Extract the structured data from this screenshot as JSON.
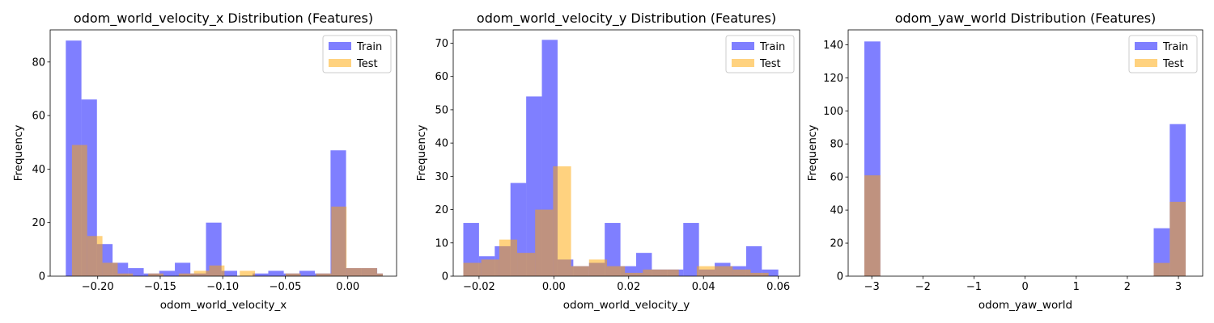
{
  "chart_data": [
    {
      "type": "bar",
      "title": "odom_world_velocity_x Distribution (Features)",
      "xlabel": "odom_world_velocity_x",
      "ylabel": "Frequency",
      "xlim": [
        -0.238,
        0.039
      ],
      "ylim": [
        0,
        92
      ],
      "xticks": [
        -0.2,
        -0.15,
        -0.1,
        -0.05,
        0.0
      ],
      "xtick_labels": [
        "−0.20",
        "−0.15",
        "−0.10",
        "−0.05",
        "0.00"
      ],
      "yticks": [
        0,
        20,
        40,
        60,
        80
      ],
      "ytick_labels": [
        "0",
        "20",
        "40",
        "60",
        "80"
      ],
      "legend_position": "top-right",
      "series": [
        {
          "name": "Train",
          "color": "#0000ff",
          "opacity": 0.5,
          "bins": [
            {
              "x0": -0.2255,
              "x1": -0.213,
              "count": 88
            },
            {
              "x0": -0.213,
              "x1": -0.2006,
              "count": 66
            },
            {
              "x0": -0.2006,
              "x1": -0.1881,
              "count": 12
            },
            {
              "x0": -0.1881,
              "x1": -0.1757,
              "count": 5
            },
            {
              "x0": -0.1757,
              "x1": -0.1632,
              "count": 3
            },
            {
              "x0": -0.1632,
              "x1": -0.1508,
              "count": 1
            },
            {
              "x0": -0.1508,
              "x1": -0.1383,
              "count": 2
            },
            {
              "x0": -0.1383,
              "x1": -0.1259,
              "count": 5
            },
            {
              "x0": -0.1259,
              "x1": -0.1134,
              "count": 1
            },
            {
              "x0": -0.1134,
              "x1": -0.101,
              "count": 20
            },
            {
              "x0": -0.101,
              "x1": -0.0885,
              "count": 2
            },
            {
              "x0": -0.0885,
              "x1": -0.0761,
              "count": 0
            },
            {
              "x0": -0.0761,
              "x1": -0.0636,
              "count": 1
            },
            {
              "x0": -0.0636,
              "x1": -0.0512,
              "count": 2
            },
            {
              "x0": -0.0512,
              "x1": -0.0387,
              "count": 1
            },
            {
              "x0": -0.0387,
              "x1": -0.0263,
              "count": 2
            },
            {
              "x0": -0.0263,
              "x1": -0.0138,
              "count": 1
            },
            {
              "x0": -0.0138,
              "x1": -0.0014,
              "count": 47
            },
            {
              "x0": -0.0014,
              "x1": 0.0111,
              "count": 3
            },
            {
              "x0": 0.0111,
              "x1": 0.0235,
              "count": 3
            },
            {
              "x0": 0.0235,
              "x1": 0.028,
              "count": 1
            }
          ]
        },
        {
          "name": "Test",
          "color": "#ffa500",
          "opacity": 0.5,
          "bins": [
            {
              "x0": -0.2206,
              "x1": -0.2084,
              "count": 49
            },
            {
              "x0": -0.2084,
              "x1": -0.1962,
              "count": 15
            },
            {
              "x0": -0.1962,
              "x1": -0.184,
              "count": 5
            },
            {
              "x0": -0.184,
              "x1": -0.1718,
              "count": 1
            },
            {
              "x0": -0.1718,
              "x1": -0.1596,
              "count": 0
            },
            {
              "x0": -0.1596,
              "x1": -0.1474,
              "count": 1
            },
            {
              "x0": -0.1474,
              "x1": -0.1352,
              "count": 0
            },
            {
              "x0": -0.1352,
              "x1": -0.123,
              "count": 1
            },
            {
              "x0": -0.123,
              "x1": -0.1108,
              "count": 2
            },
            {
              "x0": -0.1108,
              "x1": -0.0986,
              "count": 4
            },
            {
              "x0": -0.0986,
              "x1": -0.0864,
              "count": 0
            },
            {
              "x0": -0.0864,
              "x1": -0.0742,
              "count": 2
            },
            {
              "x0": -0.0742,
              "x1": -0.062,
              "count": 0
            },
            {
              "x0": -0.062,
              "x1": -0.0498,
              "count": 0
            },
            {
              "x0": -0.0498,
              "x1": -0.0376,
              "count": 1
            },
            {
              "x0": -0.0376,
              "x1": -0.0254,
              "count": 0
            },
            {
              "x0": -0.0254,
              "x1": -0.0132,
              "count": 1
            },
            {
              "x0": -0.0132,
              "x1": -0.001,
              "count": 26
            },
            {
              "x0": -0.001,
              "x1": 0.0112,
              "count": 3
            },
            {
              "x0": 0.0112,
              "x1": 0.0234,
              "count": 3
            },
            {
              "x0": 0.0234,
              "x1": 0.028,
              "count": 1
            }
          ]
        }
      ]
    },
    {
      "type": "bar",
      "title": "odom_world_velocity_y Distribution (Features)",
      "xlabel": "odom_world_velocity_y",
      "ylabel": "Frequency",
      "xlim": [
        -0.0269,
        0.0657
      ],
      "ylim": [
        0,
        74
      ],
      "xticks": [
        -0.02,
        0.0,
        0.02,
        0.04,
        0.06
      ],
      "xtick_labels": [
        "−0.02",
        "0.00",
        "0.02",
        "0.04",
        "0.06"
      ],
      "yticks": [
        0,
        10,
        20,
        30,
        40,
        50,
        60,
        70
      ],
      "ytick_labels": [
        "0",
        "10",
        "20",
        "30",
        "40",
        "50",
        "60",
        "70"
      ],
      "legend_position": "top-right",
      "series": [
        {
          "name": "Train",
          "color": "#0000ff",
          "opacity": 0.5,
          "bins": [
            {
              "x0": -0.0242,
              "x1": -0.02,
              "count": 16
            },
            {
              "x0": -0.02,
              "x1": -0.0158,
              "count": 6
            },
            {
              "x0": -0.0158,
              "x1": -0.0116,
              "count": 9
            },
            {
              "x0": -0.0116,
              "x1": -0.0074,
              "count": 28
            },
            {
              "x0": -0.0074,
              "x1": -0.0032,
              "count": 54
            },
            {
              "x0": -0.0032,
              "x1": 0.001,
              "count": 71
            },
            {
              "x0": 0.001,
              "x1": 0.0052,
              "count": 5
            },
            {
              "x0": 0.0052,
              "x1": 0.0094,
              "count": 3
            },
            {
              "x0": 0.0094,
              "x1": 0.0136,
              "count": 4
            },
            {
              "x0": 0.0136,
              "x1": 0.0178,
              "count": 16
            },
            {
              "x0": 0.0178,
              "x1": 0.022,
              "count": 3
            },
            {
              "x0": 0.022,
              "x1": 0.0262,
              "count": 7
            },
            {
              "x0": 0.0262,
              "x1": 0.0304,
              "count": 2
            },
            {
              "x0": 0.0304,
              "x1": 0.0346,
              "count": 2
            },
            {
              "x0": 0.0346,
              "x1": 0.0388,
              "count": 16
            },
            {
              "x0": 0.0388,
              "x1": 0.043,
              "count": 2
            },
            {
              "x0": 0.043,
              "x1": 0.0472,
              "count": 4
            },
            {
              "x0": 0.0472,
              "x1": 0.0514,
              "count": 3
            },
            {
              "x0": 0.0514,
              "x1": 0.0556,
              "count": 9
            },
            {
              "x0": 0.0556,
              "x1": 0.06,
              "count": 2
            }
          ]
        },
        {
          "name": "Test",
          "color": "#ffa500",
          "opacity": 0.5,
          "bins": [
            {
              "x0": -0.0242,
              "x1": -0.0194,
              "count": 4
            },
            {
              "x0": -0.0194,
              "x1": -0.0146,
              "count": 5
            },
            {
              "x0": -0.0146,
              "x1": -0.0098,
              "count": 11
            },
            {
              "x0": -0.0098,
              "x1": -0.005,
              "count": 7
            },
            {
              "x0": -0.005,
              "x1": -0.0002,
              "count": 20
            },
            {
              "x0": -0.0002,
              "x1": 0.0046,
              "count": 33
            },
            {
              "x0": 0.0046,
              "x1": 0.0094,
              "count": 3
            },
            {
              "x0": 0.0094,
              "x1": 0.0142,
              "count": 5
            },
            {
              "x0": 0.0142,
              "x1": 0.019,
              "count": 3
            },
            {
              "x0": 0.019,
              "x1": 0.0238,
              "count": 1
            },
            {
              "x0": 0.0238,
              "x1": 0.0286,
              "count": 2
            },
            {
              "x0": 0.0286,
              "x1": 0.0334,
              "count": 2
            },
            {
              "x0": 0.0334,
              "x1": 0.0382,
              "count": 0
            },
            {
              "x0": 0.0382,
              "x1": 0.043,
              "count": 3
            },
            {
              "x0": 0.043,
              "x1": 0.0478,
              "count": 3
            },
            {
              "x0": 0.0478,
              "x1": 0.0526,
              "count": 2
            },
            {
              "x0": 0.0526,
              "x1": 0.0574,
              "count": 1
            }
          ]
        }
      ]
    },
    {
      "type": "bar",
      "title": "odom_yaw_world Distribution (Features)",
      "xlabel": "odom_yaw_world",
      "ylabel": "Frequency",
      "xlim": [
        -3.462,
        3.474
      ],
      "ylim": [
        0,
        149
      ],
      "xticks": [
        -3,
        -2,
        -1,
        0,
        1,
        2,
        3
      ],
      "xtick_labels": [
        "−3",
        "−2",
        "−1",
        "0",
        "1",
        "2",
        "3"
      ],
      "yticks": [
        0,
        20,
        40,
        60,
        80,
        100,
        120,
        140
      ],
      "ytick_labels": [
        "0",
        "20",
        "40",
        "60",
        "80",
        "100",
        "120",
        "140"
      ],
      "legend_position": "top-right",
      "series": [
        {
          "name": "Train",
          "color": "#0000ff",
          "opacity": 0.5,
          "bins": [
            {
              "x0": -3.146,
              "x1": -2.832,
              "count": 142
            },
            {
              "x0": 2.516,
              "x1": 2.83,
              "count": 29
            },
            {
              "x0": 2.83,
              "x1": 3.141,
              "count": 92
            }
          ]
        },
        {
          "name": "Test",
          "color": "#ffa500",
          "opacity": 0.5,
          "bins": [
            {
              "x0": -3.146,
              "x1": -2.832,
              "count": 61
            },
            {
              "x0": 2.516,
              "x1": 2.83,
              "count": 8
            },
            {
              "x0": 2.83,
              "x1": 3.141,
              "count": 45
            }
          ]
        }
      ]
    }
  ]
}
